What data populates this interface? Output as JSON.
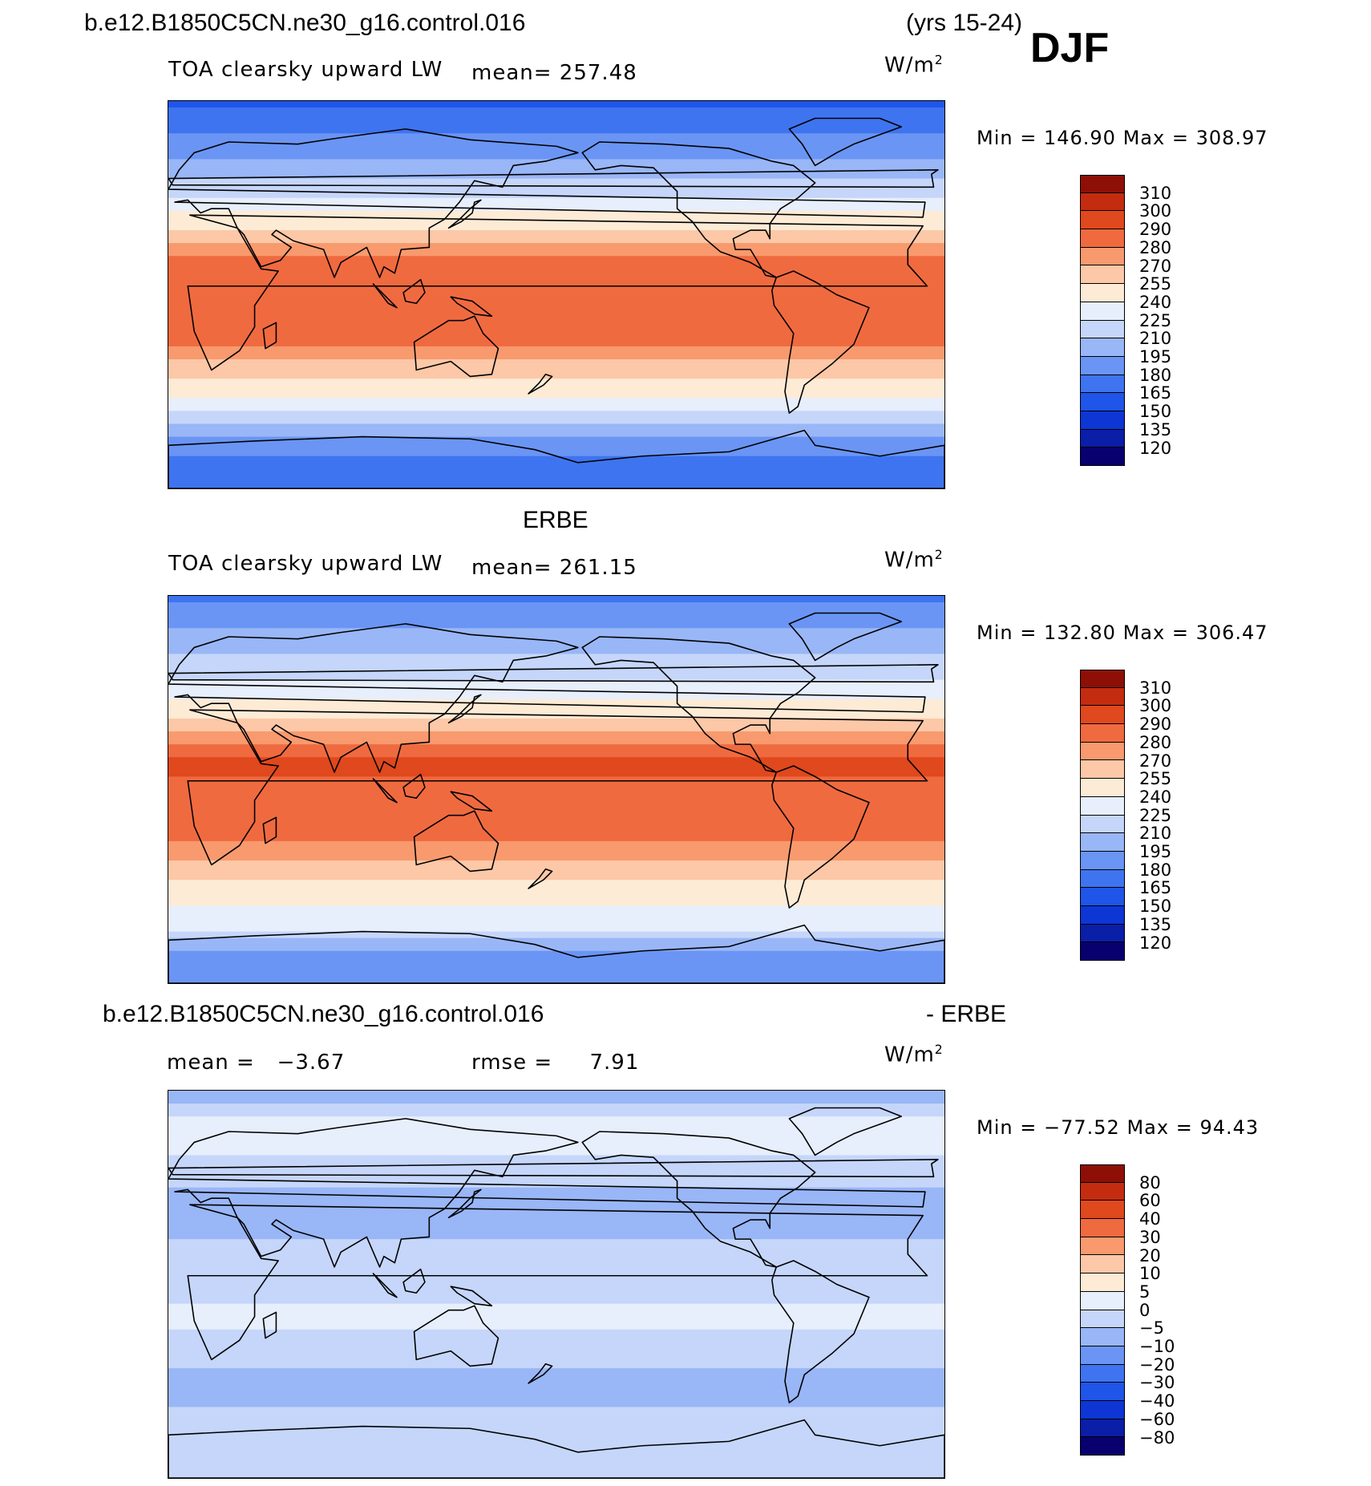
{
  "header": {
    "case_name": "b.e12.B1850C5CN.ne30_g16.control.016",
    "years": "(yrs 15-24)",
    "season": "DJF"
  },
  "panels": [
    {
      "id": "model",
      "title": "",
      "variable": "TOA clearsky upward LW",
      "mean_label": "mean=",
      "mean_value": "257.48",
      "units": "W/m",
      "units_sup": "2",
      "min_label": "Min",
      "min_value": "146.90",
      "max_label": "Max",
      "max_value": "308.97"
    },
    {
      "id": "obs",
      "title": "ERBE",
      "variable": "TOA clearsky upward LW",
      "mean_label": "mean=",
      "mean_value": "261.15",
      "units": "W/m",
      "units_sup": "2",
      "min_label": "Min",
      "min_value": "132.80",
      "max_label": "Max",
      "max_value": "306.47"
    },
    {
      "id": "diff",
      "title_left": "b.e12.B1850C5CN.ne30_g16.control.016",
      "title_right": "- ERBE",
      "mean_label": "mean =",
      "mean_value": "−3.67",
      "rmse_label": "rmse =",
      "rmse_value": "7.91",
      "units": "W/m",
      "units_sup": "2",
      "min_label": "Min",
      "min_value": "−77.52",
      "max_label": "Max",
      "max_value": "94.43"
    }
  ],
  "chart_data": [
    {
      "type": "heatmap",
      "title": "TOA clearsky upward LW (model)",
      "units": "W/m2",
      "mean": 257.48,
      "min": 146.9,
      "max": 308.97,
      "levels": [
        120,
        135,
        150,
        165,
        180,
        195,
        210,
        225,
        240,
        255,
        270,
        280,
        290,
        300,
        310
      ],
      "colors": [
        "#08006e",
        "#0a1ea8",
        "#0d36d4",
        "#1f55e8",
        "#3f74f0",
        "#6a95f4",
        "#99b6f7",
        "#c5d6fa",
        "#e7eefc",
        "#fdebd6",
        "#fcc8a7",
        "#f89a6e",
        "#f06a40",
        "#e0481e",
        "#c42c0f",
        "#8e0f06"
      ],
      "band_profile_deg_lat": [
        {
          "lat": 90,
          "value": 160
        },
        {
          "lat": 70,
          "value": 185
        },
        {
          "lat": 50,
          "value": 215
        },
        {
          "lat": 30,
          "value": 255
        },
        {
          "lat": 15,
          "value": 290
        },
        {
          "lat": 0,
          "value": 285
        },
        {
          "lat": -15,
          "value": 290
        },
        {
          "lat": -30,
          "value": 270
        },
        {
          "lat": -50,
          "value": 235
        },
        {
          "lat": -65,
          "value": 200
        },
        {
          "lat": -80,
          "value": 165
        }
      ]
    },
    {
      "type": "heatmap",
      "title": "TOA clearsky upward LW (ERBE)",
      "units": "W/m2",
      "mean": 261.15,
      "min": 132.8,
      "max": 306.47,
      "levels": [
        120,
        135,
        150,
        165,
        180,
        195,
        210,
        225,
        240,
        255,
        270,
        280,
        290,
        300,
        310
      ],
      "colors": [
        "#08006e",
        "#0a1ea8",
        "#0d36d4",
        "#1f55e8",
        "#3f74f0",
        "#6a95f4",
        "#99b6f7",
        "#c5d6fa",
        "#e7eefc",
        "#fdebd6",
        "#fcc8a7",
        "#f89a6e",
        "#f06a40",
        "#e0481e",
        "#c42c0f",
        "#8e0f06"
      ],
      "band_profile_deg_lat": [
        {
          "lat": 90,
          "value": 175
        },
        {
          "lat": 70,
          "value": 200
        },
        {
          "lat": 50,
          "value": 225
        },
        {
          "lat": 30,
          "value": 262
        },
        {
          "lat": 15,
          "value": 292
        },
        {
          "lat": 0,
          "value": 288
        },
        {
          "lat": -15,
          "value": 290
        },
        {
          "lat": -30,
          "value": 275
        },
        {
          "lat": -50,
          "value": 245
        },
        {
          "lat": -65,
          "value": 225
        },
        {
          "lat": -80,
          "value": 180
        }
      ]
    },
    {
      "type": "heatmap",
      "title": "Model - ERBE",
      "units": "W/m2",
      "mean": -3.67,
      "rmse": 7.91,
      "min": -77.52,
      "max": 94.43,
      "levels": [
        -80,
        -60,
        -40,
        -30,
        -20,
        -10,
        -5,
        0,
        5,
        10,
        20,
        30,
        40,
        60,
        80
      ],
      "colors": [
        "#08006e",
        "#0a1ea8",
        "#0d36d4",
        "#1f55e8",
        "#3f74f0",
        "#6a95f4",
        "#99b6f7",
        "#c5d6fa",
        "#e7eefc",
        "#fdebd6",
        "#fcc8a7",
        "#f89a6e",
        "#f06a40",
        "#e0481e",
        "#c42c0f",
        "#8e0f06"
      ],
      "band_profile_deg_lat": [
        {
          "lat": 90,
          "value": -8
        },
        {
          "lat": 70,
          "value": 4
        },
        {
          "lat": 50,
          "value": -4
        },
        {
          "lat": 30,
          "value": -8
        },
        {
          "lat": 15,
          "value": -3
        },
        {
          "lat": 0,
          "value": -4
        },
        {
          "lat": -15,
          "value": 2
        },
        {
          "lat": -30,
          "value": -4
        },
        {
          "lat": -50,
          "value": -6
        },
        {
          "lat": -65,
          "value": -4
        },
        {
          "lat": -80,
          "value": -3
        }
      ]
    }
  ],
  "colorbars": [
    {
      "labels": [
        "310",
        "300",
        "290",
        "280",
        "270",
        "255",
        "240",
        "225",
        "210",
        "195",
        "180",
        "165",
        "150",
        "135",
        "120"
      ]
    },
    {
      "labels": [
        "310",
        "300",
        "290",
        "280",
        "270",
        "255",
        "240",
        "225",
        "210",
        "195",
        "180",
        "165",
        "150",
        "135",
        "120"
      ]
    },
    {
      "labels": [
        "80",
        "60",
        "40",
        "30",
        "20",
        "10",
        "5",
        "0",
        "−5",
        "−10",
        "−20",
        "−30",
        "−40",
        "−60",
        "−80"
      ]
    }
  ]
}
